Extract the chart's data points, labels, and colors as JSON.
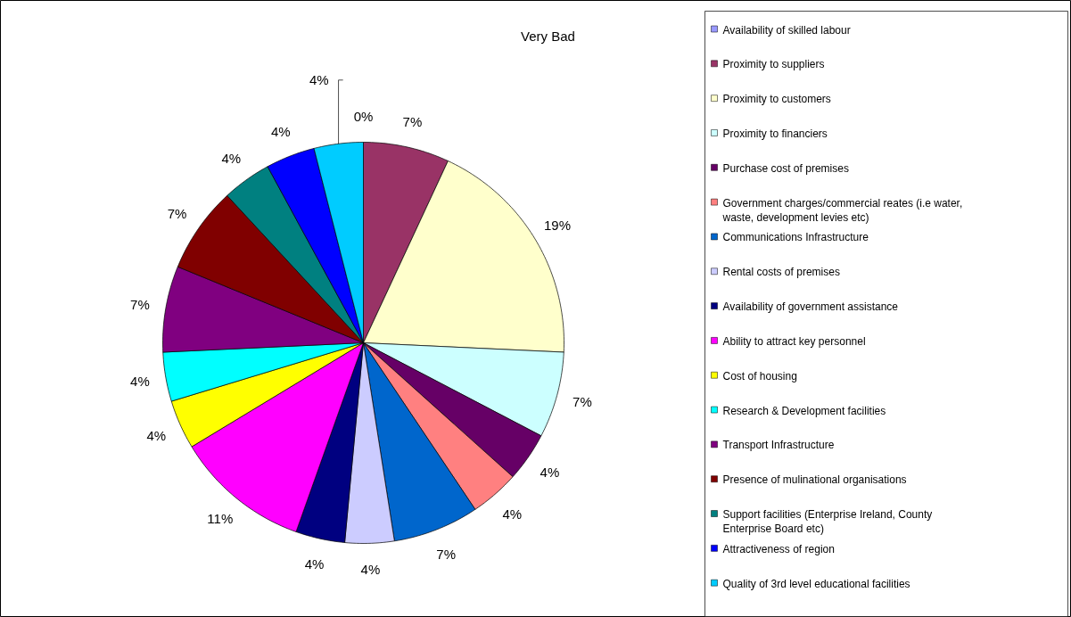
{
  "chart_data": {
    "type": "pie",
    "title": "Very Bad",
    "categories": [
      "Availability of skilled labour",
      "Proximity to suppliers",
      "Proximity to customers",
      "Proximity to financiers",
      "Purchase cost of premises",
      "Government charges/commercial reates (i.e water, waste, development levies etc)",
      "Communications Infrastructure",
      "Rental costs of premises",
      "Availability of government assistance",
      "Ability to attract key personnel",
      "Cost of housing",
      "Research & Development facilities",
      "Transport Infrastructure",
      "Presence of mulinational organisations",
      "Support facilities (Enterprise Ireland, County Enterprise Board etc)",
      "Attractiveness of region",
      "Quality of 3rd level educational facilities"
    ],
    "values": [
      0,
      7,
      19,
      7,
      4,
      4,
      7,
      4,
      4,
      11,
      4,
      4,
      7,
      7,
      4,
      4,
      4
    ],
    "value_labels": [
      "0%",
      "7%",
      "19%",
      "7%",
      "4%",
      "4%",
      "7%",
      "4%",
      "4%",
      "11%",
      "4%",
      "4%",
      "7%",
      "7%",
      "4%",
      "4%",
      "4%"
    ],
    "colors": [
      "#9999ff",
      "#993366",
      "#ffffcc",
      "#ccffff",
      "#660066",
      "#ff8080",
      "#0066cc",
      "#ccccff",
      "#000080",
      "#ff00ff",
      "#ffff00",
      "#00ffff",
      "#800080",
      "#800000",
      "#008080",
      "#0000ff",
      "#00ccff"
    ],
    "legend": "right"
  }
}
